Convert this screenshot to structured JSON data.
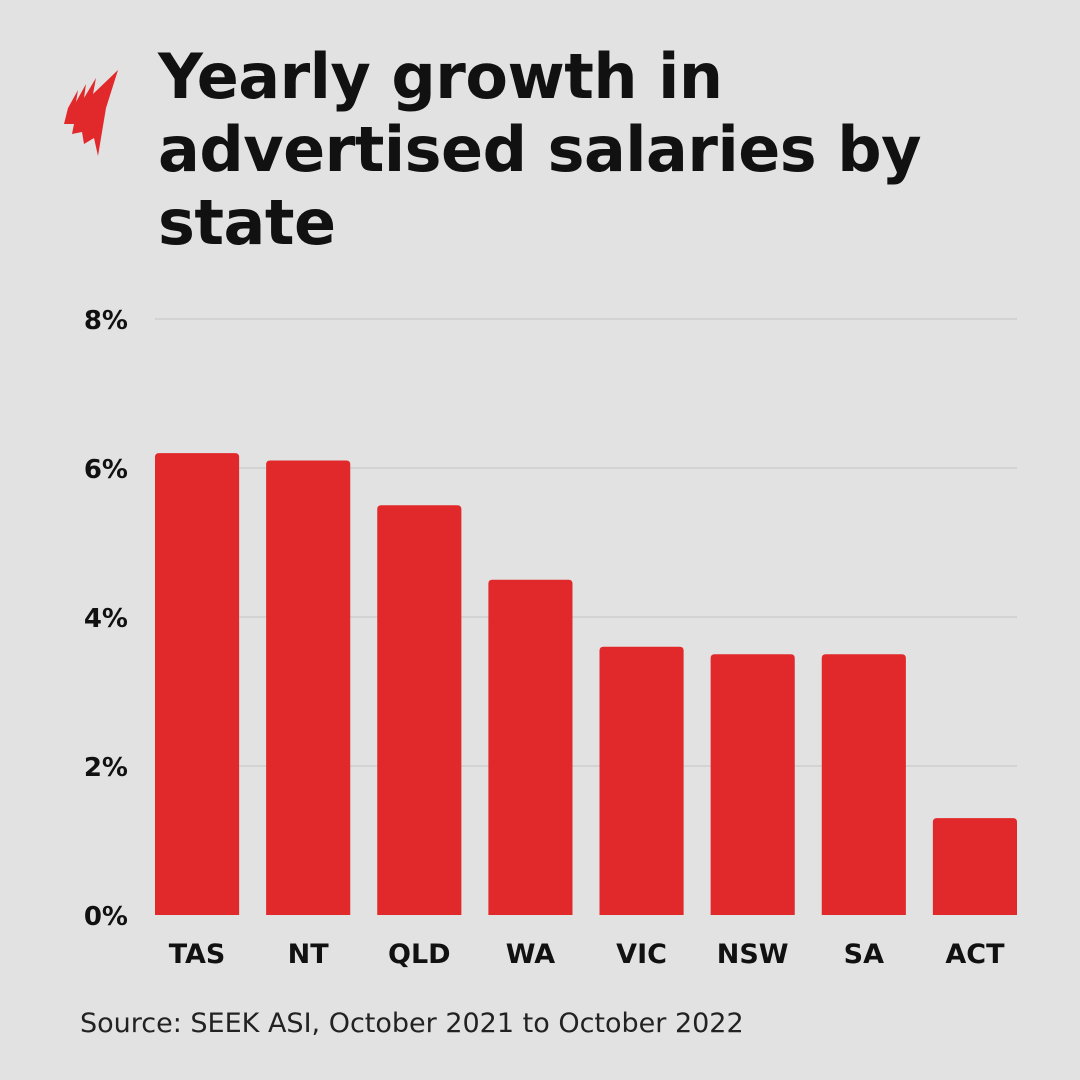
{
  "header": {
    "title": "Yearly growth in advertised salaries by state",
    "logo": "sbs-logo"
  },
  "chart_data": {
    "type": "bar",
    "title": "Yearly growth in advertised salaries by state",
    "categories": [
      "TAS",
      "NT",
      "QLD",
      "WA",
      "VIC",
      "NSW",
      "SA",
      "ACT"
    ],
    "values": [
      6.2,
      6.1,
      5.5,
      4.5,
      3.6,
      3.5,
      3.5,
      1.3
    ],
    "ylim": [
      0,
      8
    ],
    "yticks": [
      0,
      2,
      4,
      6,
      8
    ],
    "ytick_labels": [
      "0%",
      "2%",
      "4%",
      "6%",
      "8%"
    ],
    "xlabel": "",
    "ylabel": "",
    "grid": true,
    "bar_color": "#e1282a"
  },
  "footer": {
    "source": "Source: SEEK ASI, October 2021 to October 2022"
  },
  "colors": {
    "background": "#e2e2e2",
    "accent": "#e1282a",
    "grid": "#c4c4c4"
  }
}
